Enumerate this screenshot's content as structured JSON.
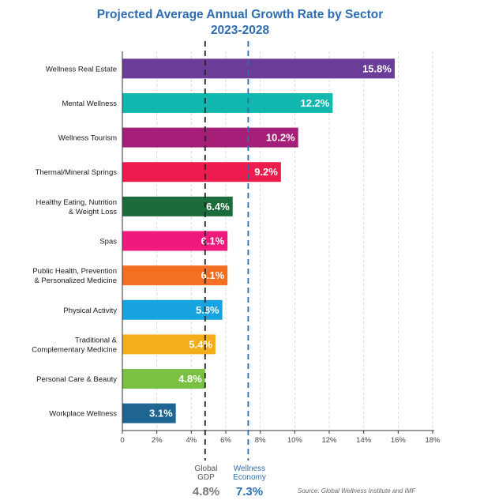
{
  "chart_data": {
    "type": "bar",
    "orientation": "horizontal",
    "title": "Projected Average Annual Growth Rate by Sector",
    "subtitle": "2023-2028",
    "categories": [
      "Wellness Real Estate",
      "Mental Wellness",
      "Wellness Tourism",
      "Thermal/Mineral Springs",
      "Healthy Eating, Nutrition & Weight Loss",
      "Spas",
      "Public Health, Prevention & Personalized Medicine",
      "Physical Activity",
      "Traditional & Complementary Medicine",
      "Personal Care & Beauty",
      "Workplace Wellness"
    ],
    "category_lines": [
      [
        "Wellness Real Estate"
      ],
      [
        "Mental Wellness"
      ],
      [
        "Wellness Tourism"
      ],
      [
        "Thermal/Mineral Springs"
      ],
      [
        "Healthy Eating, Nutrition",
        "& Weight Loss"
      ],
      [
        "Spas"
      ],
      [
        "Public Health, Prevention",
        "& Personalized Medicine"
      ],
      [
        "Physical Activity"
      ],
      [
        "Traditional &",
        "Complementary Medicine"
      ],
      [
        "Personal Care & Beauty"
      ],
      [
        "Workplace Wellness"
      ]
    ],
    "values": [
      15.8,
      12.2,
      10.2,
      9.2,
      6.4,
      6.1,
      6.1,
      5.8,
      5.4,
      4.8,
      3.1
    ],
    "value_labels": [
      "15.8%",
      "12.2%",
      "10.2%",
      "9.2%",
      "6.4%",
      "6.1%",
      "6.1%",
      "5.8%",
      "5.4%",
      "4.8%",
      "3.1%"
    ],
    "colors": [
      "#6b3d98",
      "#10b8b0",
      "#a51f79",
      "#ee1c4e",
      "#1c6b3a",
      "#ef1a7b",
      "#f36f21",
      "#17a3e0",
      "#f5ae1b",
      "#7ac143",
      "#1f6592"
    ],
    "x_ticks": [
      0,
      2,
      4,
      6,
      8,
      10,
      12,
      14,
      16,
      18
    ],
    "x_tick_labels": [
      "0",
      "2%",
      "4%",
      "6%",
      "8%",
      "10%",
      "12%",
      "14%",
      "16%",
      "18%"
    ],
    "xlim": [
      0,
      18
    ],
    "xlabel": "",
    "ylabel": "",
    "grid": "vertical dashed",
    "reference_lines": [
      {
        "name_lines": [
          "Global",
          "GDP"
        ],
        "value": 4.8,
        "value_label": "4.8%",
        "color": "#222222",
        "label_color": "#555555"
      },
      {
        "name_lines": [
          "Wellness",
          "Economy"
        ],
        "value": 7.3,
        "value_label": "7.3%",
        "color": "#2e6db4",
        "label_color": "#2e6db4"
      }
    ],
    "source": "Source: Global Wellness Institute and IMF"
  }
}
